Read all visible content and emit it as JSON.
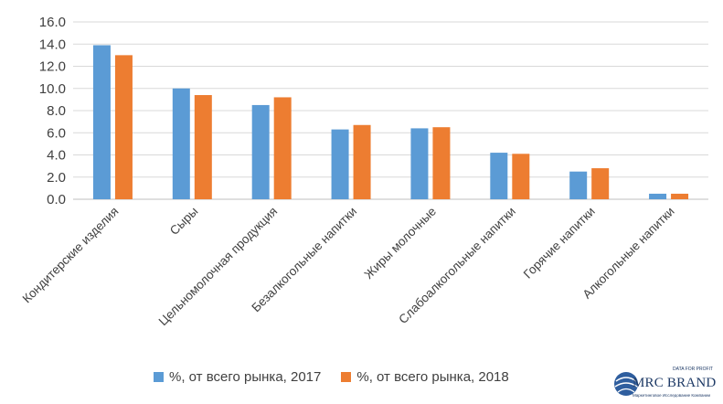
{
  "chart_data": {
    "type": "bar",
    "title": "",
    "xlabel": "",
    "ylabel": "",
    "ylim": [
      0,
      16
    ],
    "yticks": [
      "0.0",
      "2.0",
      "4.0",
      "6.0",
      "8.0",
      "10.0",
      "12.0",
      "14.0",
      "16.0"
    ],
    "grid": true,
    "legend_position": "bottom",
    "categories": [
      "Кондитерские изделия",
      "Сыры",
      "Цельномолочная продукция",
      "Безалкогольные напитки",
      "Жиры молочные",
      "Слабоалкогольные напитки",
      "Горячие напитки",
      "Алкогольные напитки"
    ],
    "series": [
      {
        "name": "%, от всего рынка, 2017",
        "color": "#5B9BD5",
        "values": [
          13.9,
          10.0,
          8.5,
          6.3,
          6.4,
          4.2,
          2.5,
          0.5
        ]
      },
      {
        "name": "%, от всего рынка, 2018",
        "color": "#ED7D31",
        "values": [
          13.0,
          9.4,
          9.2,
          6.7,
          6.5,
          4.1,
          2.8,
          0.5
        ]
      }
    ]
  },
  "logo": {
    "text": "MRC BRAND",
    "tagline": "DATA FOR PROFIT",
    "subline": "Маркетинговое Исследование Компании"
  }
}
